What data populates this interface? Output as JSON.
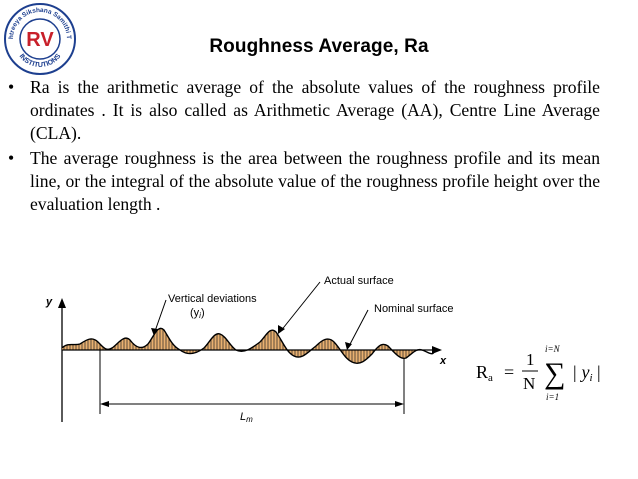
{
  "logo": {
    "letters": "RV",
    "ring_text_top": "Rashtreeya Sikshana Samithi Trust",
    "ring_text_bottom": "INSTITUTIONS"
  },
  "slide": {
    "title": "Roughness Average, Ra",
    "bullets": [
      {
        "marker": "•",
        "text": "Ra is the arithmetic average of the absolute values of the roughness profile ordinates . It is also called as Arithmetic Average (AA), Centre Line Average (CLA)."
      },
      {
        "marker": "•",
        "text": "The average roughness is the area between the roughness profile and its mean line, or the integral of the absolute value of the roughness profile height over the evaluation length ."
      }
    ]
  },
  "diagram": {
    "y_label": "y",
    "x_label": "x",
    "vertical_deviations_label": "Vertical deviations",
    "yi_label": "(y",
    "yi_sub": "i",
    "yi_close": ")",
    "actual_surface_label": "Actual surface",
    "nominal_surface_label": "Nominal surface",
    "length_label": "L",
    "length_sub": "m"
  },
  "formula": {
    "lhs": "R",
    "lhs_sub": "a",
    "equals": "=",
    "numerator": "1",
    "denominator": "N",
    "sum_top": "i=N",
    "sum_symbol": "∑",
    "sum_bottom": "i=1",
    "term": "| y",
    "term_sub": "i",
    "term_close": " |"
  },
  "colors": {
    "logo_red": "#c8202a",
    "logo_blue": "#1d3f8f",
    "hatch_fill": "#e8b070",
    "line": "#000000"
  }
}
